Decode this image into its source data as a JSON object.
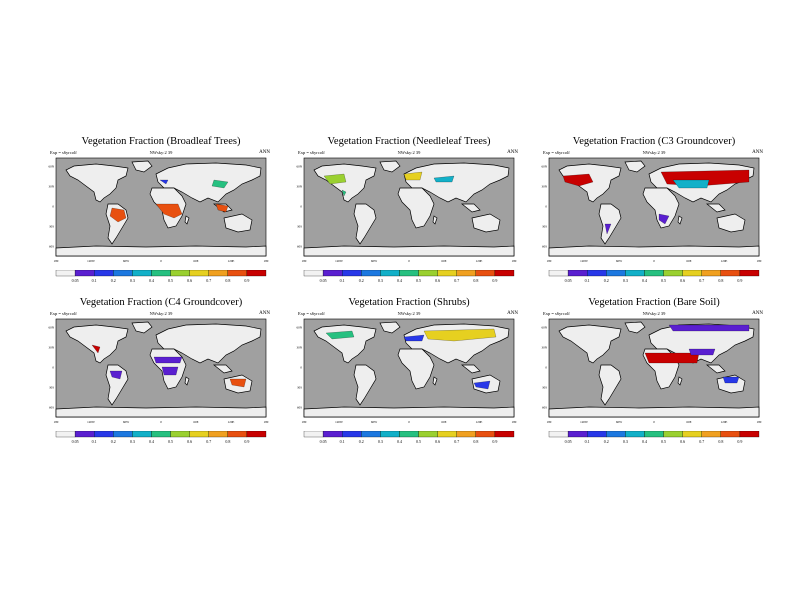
{
  "common": {
    "left_label": "Exp = s6yrcolf",
    "center_label": "NWsky:2 39",
    "right_label": "ANN",
    "lat_labels": [
      "60N",
      "30N",
      "0",
      "30S",
      "60S"
    ],
    "lon_labels": [
      "180",
      "120W",
      "60W",
      "0",
      "60E",
      "120E",
      "180"
    ],
    "colorbar": {
      "labels": [
        "0.05",
        "0.1",
        "0.2",
        "0.3",
        "0.4",
        "0.5",
        "0.6",
        "0.7",
        "0.8",
        "0.9"
      ],
      "colors": [
        "#f2f2f2",
        "#5a1fd0",
        "#2838e8",
        "#1c78e0",
        "#12b0c8",
        "#26c080",
        "#9ad030",
        "#e6d020",
        "#f0a020",
        "#e85010",
        "#c80000"
      ]
    },
    "colors": {
      "ocean": "#a0a0a0",
      "land": "#eeeeee",
      "border": "#000000"
    }
  },
  "panels": [
    {
      "title": "Vegetation Fraction (Broadleaf Trees)"
    },
    {
      "title": "Vegetation Fraction (Needleleaf Trees)"
    },
    {
      "title": "Vegetation Fraction (C3 Groundcover)"
    },
    {
      "title": "Vegetation Fraction (C4 Groundcover)"
    },
    {
      "title": "Vegetation Fraction (Shrubs)"
    },
    {
      "title": "Vegetation Fraction (Bare Soil)"
    }
  ]
}
